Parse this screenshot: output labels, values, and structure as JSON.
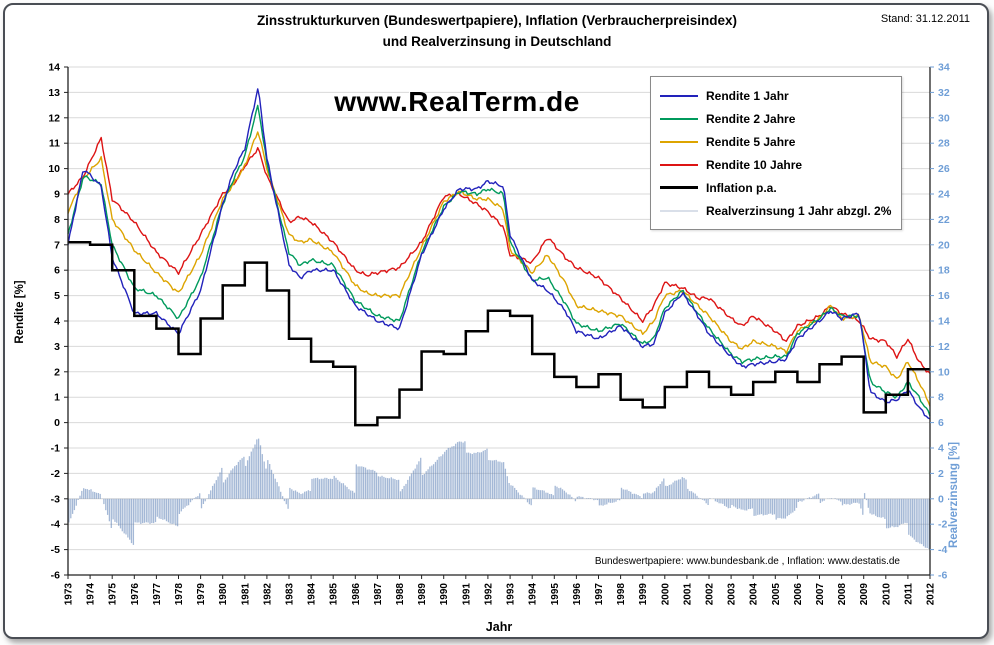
{
  "meta": {
    "stand": "Stand: 31.12.2011"
  },
  "title": {
    "line1": "Zinsstrukturkurven (Bundeswertpapiere), Inflation (Verbraucherpreisindex)",
    "line2": "und Realverzinsung in Deutschland"
  },
  "watermark": "www.RealTerm.de",
  "source_note": "Bundeswertpapiere: www.bundesbank.de ,  Inflation: www.destatis.de",
  "legend": [
    {
      "label": "Rendite 1 Jahr",
      "color": "#2222bb",
      "thickness": 2.5
    },
    {
      "label": "Rendite 2 Jahre",
      "color": "#009a5c",
      "thickness": 2.5
    },
    {
      "label": "Rendite 5 Jahre",
      "color": "#dda400",
      "thickness": 2.5
    },
    {
      "label": "Rendite 10 Jahre",
      "color": "#dd1414",
      "thickness": 2.5
    },
    {
      "label": "Inflation p.a.",
      "color": "#000000",
      "thickness": 3.5
    },
    {
      "label": "Realverzinsung 1 Jahr abzgl. 2%",
      "color": "#d9dfe9",
      "thickness": 2
    }
  ],
  "chart_data": {
    "type": "line",
    "x_label": "Jahr",
    "grid": "horizontal",
    "legend_position": "top-right",
    "axes": {
      "left": {
        "title": "Rendite [%]",
        "min": -6,
        "max": 14,
        "step": 1
      },
      "right": {
        "title": "Realverzinsung [%]",
        "min": -6,
        "max": 34,
        "step": 2,
        "color": "#6f9ed6"
      },
      "x": {
        "min": 1973,
        "max": 2012,
        "step": 1
      }
    },
    "x": [
      1973,
      1973.7,
      1974.5,
      1975,
      1976,
      1977,
      1978,
      1979,
      1980,
      1980.5,
      1981,
      1981.6,
      1982,
      1983,
      1983.5,
      1984,
      1985,
      1986,
      1986.5,
      1987,
      1988,
      1989,
      1990,
      1990.7,
      1991.5,
      1992,
      1992.7,
      1993,
      1994,
      1994.7,
      1995.5,
      1996,
      1997,
      1998,
      1999,
      1999.5,
      2000,
      2000.8,
      2001.5,
      2002,
      2003,
      2003.5,
      2004,
      2005,
      2005.5,
      2006,
      2007,
      2007.5,
      2008,
      2008.8,
      2009.3,
      2010,
      2010.5,
      2011,
      2011.5,
      2012
    ],
    "series": [
      {
        "name": "Rendite 1 Jahr",
        "color": "#2222bb",
        "values": [
          7.0,
          10.0,
          9.3,
          6.5,
          4.3,
          4.3,
          3.5,
          5.2,
          8.6,
          9.9,
          10.8,
          13.2,
          10.4,
          6.2,
          5.7,
          6.0,
          6.0,
          4.6,
          4.3,
          4.0,
          3.7,
          6.6,
          8.4,
          9.2,
          9.2,
          9.5,
          9.3,
          7.4,
          5.6,
          5.2,
          4.4,
          3.6,
          3.3,
          3.8,
          3.0,
          3.1,
          4.3,
          5.1,
          4.2,
          3.5,
          2.6,
          2.2,
          2.3,
          2.4,
          2.5,
          3.3,
          4.0,
          4.4,
          4.1,
          4.3,
          1.2,
          0.8,
          0.9,
          1.3,
          0.6,
          0.1
        ]
      },
      {
        "name": "Rendite 2 Jahre",
        "color": "#009a5c",
        "values": [
          7.4,
          9.7,
          9.4,
          7.0,
          5.3,
          5.0,
          4.1,
          5.7,
          8.6,
          9.6,
          10.5,
          12.5,
          10.2,
          6.7,
          6.2,
          6.4,
          6.2,
          4.8,
          4.5,
          4.2,
          4.0,
          6.7,
          8.5,
          9.1,
          9.0,
          9.2,
          9.0,
          7.1,
          5.6,
          5.7,
          4.7,
          3.9,
          3.6,
          3.9,
          3.1,
          3.3,
          4.5,
          5.2,
          4.3,
          3.7,
          2.7,
          2.4,
          2.5,
          2.6,
          2.6,
          3.5,
          4.1,
          4.5,
          4.2,
          4.2,
          1.6,
          1.2,
          1.0,
          1.6,
          1.0,
          0.3
        ]
      },
      {
        "name": "Rendite 5 Jahre",
        "color": "#dda400",
        "values": [
          8.3,
          9.6,
          10.4,
          8.0,
          6.8,
          5.9,
          5.1,
          6.6,
          8.8,
          9.4,
          10.1,
          11.5,
          10.0,
          7.4,
          7.1,
          7.2,
          6.7,
          5.4,
          5.1,
          5.0,
          5.0,
          6.9,
          8.7,
          9.1,
          8.8,
          8.8,
          8.4,
          6.8,
          5.9,
          6.6,
          5.5,
          4.6,
          4.4,
          4.2,
          3.5,
          4.0,
          5.0,
          5.2,
          4.6,
          4.2,
          3.2,
          2.9,
          3.2,
          3.0,
          2.8,
          3.6,
          4.1,
          4.6,
          4.1,
          4.2,
          2.4,
          2.2,
          1.7,
          2.4,
          1.6,
          0.7
        ]
      },
      {
        "name": "Rendite 10 Jahre",
        "color": "#dd1414",
        "values": [
          9.0,
          9.7,
          11.2,
          8.8,
          7.9,
          6.7,
          5.9,
          7.4,
          9.0,
          9.4,
          10.1,
          10.8,
          9.7,
          7.9,
          8.1,
          7.9,
          7.1,
          6.0,
          5.8,
          5.9,
          6.1,
          7.1,
          8.9,
          9.0,
          8.6,
          8.3,
          7.7,
          6.6,
          6.3,
          7.3,
          6.5,
          6.1,
          5.7,
          4.9,
          4.0,
          4.6,
          5.5,
          5.3,
          4.9,
          4.9,
          4.1,
          3.8,
          4.2,
          3.6,
          3.2,
          3.8,
          4.2,
          4.6,
          4.3,
          4.0,
          3.3,
          3.2,
          2.6,
          3.3,
          2.4,
          1.9
        ]
      }
    ],
    "inflation": {
      "name": "Inflation p.a.",
      "color": "#000000",
      "style": "step",
      "year_start": 1973,
      "values": [
        7.1,
        7.0,
        6.0,
        4.2,
        3.7,
        2.7,
        4.1,
        5.4,
        6.3,
        5.2,
        3.3,
        2.4,
        2.2,
        -0.1,
        0.2,
        1.3,
        2.8,
        2.7,
        3.6,
        4.4,
        4.2,
        2.7,
        1.8,
        1.4,
        1.9,
        0.9,
        0.6,
        1.4,
        2.0,
        1.4,
        1.1,
        1.6,
        2.0,
        1.6,
        2.3,
        2.6,
        0.4,
        1.1,
        2.1
      ]
    },
    "realverzinsung": {
      "name": "Realverzinsung 1 Jahr abzgl. 2%",
      "style": "bars",
      "axis": "right",
      "color": "#5a7db4",
      "formula": "rendite_1_jahr - inflation - 2"
    }
  }
}
